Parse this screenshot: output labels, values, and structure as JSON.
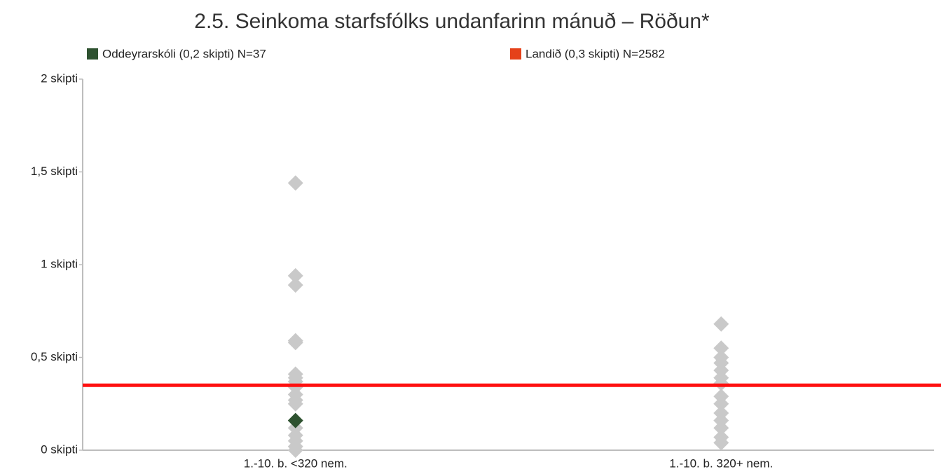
{
  "chart_data": {
    "type": "strip",
    "title": "2.5. Seinkoma starfsfólks undanfarinn mánuð – Röðun*",
    "categories": [
      "1.-10. b. <320 nem.",
      "1.-10. b. 320+ nem."
    ],
    "ylim": [
      0,
      2
    ],
    "yticks": [
      {
        "value": 0,
        "label": "0 skipti"
      },
      {
        "value": 0.5,
        "label": "0,5 skipti"
      },
      {
        "value": 1,
        "label": "1 skipti"
      },
      {
        "value": 1.5,
        "label": "1,5 skipti"
      },
      {
        "value": 2,
        "label": "2 skipti"
      }
    ],
    "others": {
      "color": "#c9c9c9",
      "values": [
        [
          1.44,
          0.94,
          0.89,
          0.59,
          0.58,
          0.41,
          0.39,
          0.37,
          0.34,
          0.3,
          0.27,
          0.25,
          0.12,
          0.08,
          0.05,
          0.02,
          0.0
        ],
        [
          0.68,
          0.55,
          0.5,
          0.47,
          0.43,
          0.39,
          0.36,
          0.29,
          0.25,
          0.2,
          0.16,
          0.12,
          0.07,
          0.04
        ]
      ]
    },
    "highlight": {
      "name": "Oddeyrarskóli (0,2 skipti) N=37",
      "color": "#2e5230",
      "category": 0,
      "value": 0.16
    },
    "reference": {
      "name": "Landið (0,3 skipti) N=2582",
      "color": "#ff1010",
      "legend_color": "#e5411a",
      "value": 0.35
    }
  }
}
